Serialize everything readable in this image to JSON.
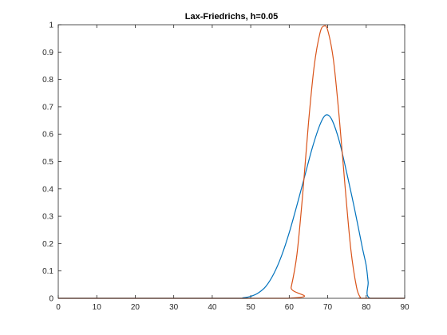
{
  "chart_data": {
    "type": "line",
    "title": "Lax-Friedrichs, h=0.05",
    "xlabel": "",
    "ylabel": "",
    "xlim": [
      0,
      90
    ],
    "ylim": [
      0,
      1
    ],
    "xticks": [
      0,
      10,
      20,
      30,
      40,
      50,
      60,
      70,
      80,
      90
    ],
    "yticks": [
      0,
      0.1,
      0.2,
      0.3,
      0.4,
      0.5,
      0.6,
      0.7,
      0.8,
      0.9,
      1
    ],
    "xtick_labels": [
      "0",
      "10",
      "20",
      "30",
      "40",
      "50",
      "60",
      "70",
      "80",
      "90"
    ],
    "ytick_labels": [
      "0",
      "0.1",
      "0.2",
      "0.3",
      "0.4",
      "0.5",
      "0.6",
      "0.7",
      "0.8",
      "0.9",
      "1"
    ],
    "grid": false,
    "legend": null,
    "series": [
      {
        "color": "#0072BD",
        "x": [
          0,
          45,
          48,
          50,
          52,
          54,
          56,
          58,
          60,
          62,
          64,
          66,
          68,
          69.5,
          71,
          73,
          75,
          77,
          79,
          80,
          80.5,
          81,
          90
        ],
        "y": [
          0,
          0,
          0.002,
          0.007,
          0.02,
          0.045,
          0.09,
          0.155,
          0.24,
          0.34,
          0.445,
          0.55,
          0.635,
          0.67,
          0.655,
          0.575,
          0.455,
          0.325,
          0.185,
          0.12,
          0.06,
          0,
          0
        ]
      },
      {
        "color": "#D95319",
        "x": [
          0,
          59.5,
          60.5,
          62,
          63.5,
          65,
          66.5,
          68,
          69,
          70,
          71.5,
          73,
          74.5,
          76,
          77.5,
          78.5,
          79,
          90
        ],
        "y": [
          0,
          0,
          0.04,
          0.16,
          0.38,
          0.64,
          0.85,
          0.97,
          0.995,
          0.98,
          0.87,
          0.66,
          0.41,
          0.18,
          0.04,
          0.003,
          0,
          0
        ]
      }
    ]
  }
}
